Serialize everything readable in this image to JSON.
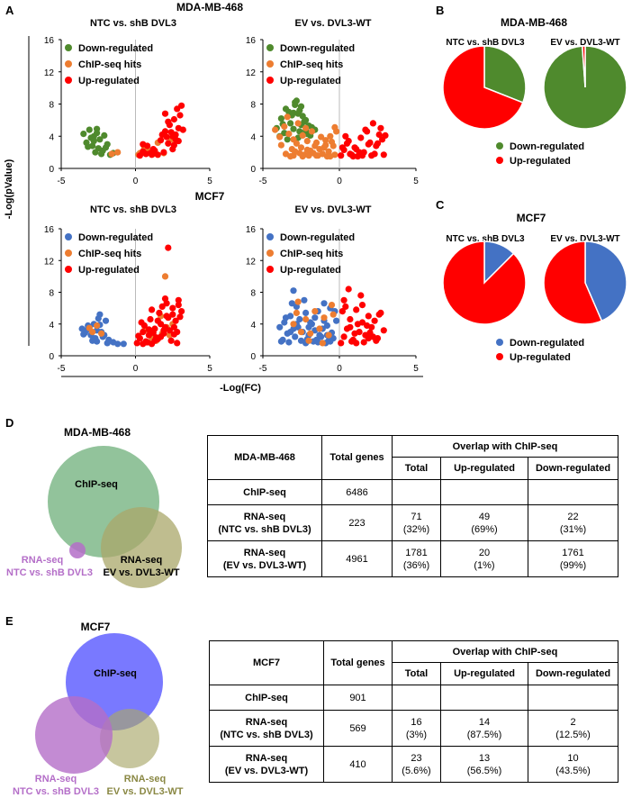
{
  "panel_letters": [
    "A",
    "B",
    "C",
    "D",
    "E"
  ],
  "panel_a": {
    "y_axis_label": "-Log(pValue)",
    "x_axis_label": "-Log(FC)",
    "x_ticks": [
      "-5",
      "0",
      "5"
    ],
    "y_ticks": [
      "0",
      "4",
      "8",
      "12",
      "16"
    ]
  },
  "legend_labels": {
    "down": "Down-regulated",
    "chip": "ChIP-seq hits",
    "up": "Up-regulated"
  },
  "colors": {
    "down_mda": "#4f8a2d",
    "down_mcf7": "#4472c4",
    "chip": "#ed7d31",
    "up": "#ff0000",
    "venn_chip_mda": "#7fb98a",
    "venn_chip_mcf7": "#6a6aff",
    "venn_ntc": "#b46ec8",
    "venn_ev": "#a9a76a"
  },
  "chart_data": [
    {
      "type": "scatter",
      "cell_line": "MDA-MB-468",
      "title": "NTC vs. shB DVL3",
      "xlim": [
        -5,
        5
      ],
      "ylim": [
        0,
        16
      ],
      "series": [
        {
          "name": "Down-regulated",
          "x": [
            -3.5,
            -3.3,
            -3.1,
            -2.9,
            -2.8,
            -2.6,
            -2.5,
            -2.4,
            -2.2,
            -2.1,
            -1.9,
            -2.7,
            -3.0,
            -2.3,
            -2.0,
            -1.7,
            -1.5,
            -2.8,
            -3.2,
            -2.6
          ],
          "y": [
            4.3,
            3.2,
            4.8,
            2.8,
            4.0,
            4.9,
            2.5,
            3.6,
            2.2,
            4.1,
            3.0,
            2.0,
            3.8,
            1.8,
            2.6,
            1.7,
            1.9,
            3.4,
            2.7,
            4.4
          ]
        },
        {
          "name": "ChIP-seq hits",
          "x": [
            -1.6,
            -1.2,
            0.3,
            0.6,
            0.9,
            1.2,
            1.5,
            1.9,
            2.4,
            0.2
          ],
          "y": [
            1.8,
            2.0,
            1.9,
            2.5,
            2.2,
            1.8,
            3.2,
            1.9,
            3.6,
            1.7
          ]
        },
        {
          "name": "Up-regulated",
          "x": [
            0.3,
            0.5,
            0.8,
            1.0,
            1.2,
            1.5,
            1.7,
            1.9,
            2.0,
            2.2,
            2.3,
            2.5,
            2.6,
            2.7,
            2.8,
            2.9,
            3.0,
            3.1,
            0.7,
            1.3,
            2.1,
            2.4,
            2.6,
            2.9,
            1.8,
            2.2,
            2.7,
            3.2,
            0.5,
            1.1,
            2.0,
            2.5
          ],
          "y": [
            1.6,
            2.1,
            2.8,
            1.9,
            2.4,
            1.7,
            3.5,
            2.0,
            4.6,
            3.1,
            5.4,
            2.4,
            6.1,
            4.2,
            7.4,
            5.0,
            6.6,
            7.8,
            1.8,
            2.2,
            3.9,
            4.5,
            2.9,
            3.4,
            4.2,
            5.8,
            3.6,
            4.8,
            3.0,
            1.7,
            6.8,
            4.0
          ]
        }
      ]
    },
    {
      "type": "scatter",
      "cell_line": "MDA-MB-468",
      "title": "EV vs. DVL3-WT",
      "xlim": [
        -5,
        5
      ],
      "ylim": [
        0,
        16
      ],
      "series": [
        {
          "name": "Down-regulated",
          "x": [
            -4.1,
            -3.8,
            -3.5,
            -3.2,
            -2.9,
            -2.7,
            -2.5,
            -2.2,
            -2.0,
            -1.8,
            -3.6,
            -3.0,
            -2.6,
            -2.3,
            -3.9,
            -3.3,
            -2.8,
            -2.4,
            -2.1,
            -1.6,
            -3.4,
            -2.9,
            -2.5,
            -3.1,
            -2.7,
            -2.2,
            -3.7,
            -3.0,
            -2.6,
            -1.9
          ],
          "y": [
            5.0,
            6.2,
            7.4,
            5.6,
            8.2,
            6.8,
            7.7,
            6.0,
            5.3,
            5.1,
            4.4,
            4.9,
            4.6,
            5.8,
            4.0,
            7.0,
            8.4,
            6.5,
            4.3,
            4.8,
            3.6,
            7.9,
            5.4,
            6.6,
            3.8,
            4.7,
            5.5,
            6.9,
            7.2,
            4.1
          ]
        },
        {
          "name": "ChIP-seq hits",
          "x": [
            -4.2,
            -3.9,
            -3.6,
            -3.3,
            -3.0,
            -2.7,
            -2.4,
            -2.1,
            -1.8,
            -1.5,
            -1.2,
            -0.9,
            -0.6,
            -0.4,
            -0.2,
            -3.8,
            -3.4,
            -3.1,
            -2.8,
            -2.5,
            -2.2,
            -1.9,
            -1.6,
            -1.3,
            -1.0,
            -0.7,
            -0.5,
            -3.5,
            -3.0,
            -2.6,
            -2.3,
            -2.0,
            -1.7,
            -1.4,
            -1.1,
            -0.8,
            -0.3,
            -3.2,
            -2.9,
            -2.4,
            -2.1,
            -1.5,
            -0.9,
            -0.6,
            -0.3
          ],
          "y": [
            4.8,
            3.9,
            5.2,
            4.3,
            3.6,
            5.6,
            4.1,
            3.4,
            4.6,
            3.2,
            3.9,
            3.5,
            4.0,
            2.8,
            4.6,
            2.9,
            6.4,
            2.4,
            3.1,
            2.6,
            5.0,
            2.2,
            2.8,
            2.4,
            2.6,
            2.1,
            3.3,
            1.8,
            1.6,
            1.9,
            1.7,
            1.6,
            1.9,
            1.6,
            1.8,
            1.5,
            1.7,
            1.5,
            2.1,
            1.5,
            2.3,
            1.6,
            2.9,
            1.5,
            5.1
          ]
        },
        {
          "name": "Up-regulated",
          "x": [
            0.1,
            0.3,
            0.5,
            0.7,
            1.0,
            1.2,
            1.4,
            1.6,
            1.8,
            2.0,
            2.2,
            2.4,
            2.6,
            2.8,
            3.0,
            0.4,
            0.8,
            1.1,
            1.5,
            1.9,
            2.3,
            2.7,
            0.2,
            0.6,
            0.9,
            1.3,
            1.7,
            2.1,
            2.5,
            2.9
          ],
          "y": [
            1.6,
            2.3,
            3.1,
            1.8,
            2.6,
            1.5,
            3.8,
            2.0,
            4.6,
            3.2,
            5.6,
            2.8,
            4.2,
            3.6,
            4.1,
            4.0,
            1.7,
            2.4,
            1.6,
            3.0,
            1.8,
            5.0,
            2.6,
            3.4,
            1.5,
            2.0,
            4.8,
            1.6,
            3.1,
            1.7
          ]
        }
      ]
    },
    {
      "type": "scatter",
      "cell_line": "MCF7",
      "title": "NTC vs. shB DVL3",
      "xlim": [
        -5,
        5
      ],
      "ylim": [
        0,
        16
      ],
      "series": [
        {
          "name": "Down-regulated",
          "x": [
            -3.6,
            -3.4,
            -3.2,
            -3.0,
            -2.8,
            -2.6,
            -2.4,
            -2.2,
            -2.0,
            -1.8,
            -3.5,
            -3.1,
            -2.7,
            -2.5,
            -2.3,
            -2.9,
            -1.9,
            -1.5,
            -1.2,
            -3.3,
            -2.6,
            -2.1,
            -0.8,
            -2.4
          ],
          "y": [
            3.4,
            2.9,
            3.8,
            2.6,
            4.0,
            3.2,
            5.2,
            2.4,
            4.4,
            2.0,
            2.7,
            3.6,
            2.2,
            4.7,
            3.0,
            1.9,
            1.6,
            1.7,
            1.5,
            3.2,
            1.8,
            2.6,
            1.5,
            3.9
          ]
        },
        {
          "name": "ChIP-seq hits",
          "x": [
            -3.1,
            -2.9,
            -2.6,
            -2.3,
            0.6,
            1.1,
            1.7,
            2.1,
            2.5,
            1.4,
            2.3,
            0.9,
            2.0,
            1.8
          ],
          "y": [
            3.5,
            3.0,
            3.8,
            2.8,
            3.2,
            2.4,
            5.0,
            3.6,
            4.0,
            1.9,
            2.6,
            1.7,
            10.0,
            2.8
          ]
        },
        {
          "name": "Up-regulated",
          "x": [
            0.1,
            0.3,
            0.5,
            0.7,
            0.9,
            1.1,
            1.3,
            1.5,
            1.7,
            1.9,
            2.1,
            2.3,
            2.5,
            2.7,
            2.9,
            3.1,
            0.4,
            0.8,
            1.2,
            1.6,
            2.0,
            2.4,
            2.8,
            0.2,
            0.6,
            1.0,
            1.4,
            1.8,
            2.2,
            2.6,
            3.0,
            0.5,
            0.9,
            1.3,
            1.7,
            2.1,
            2.5,
            2.9,
            1.5,
            2.0,
            2.2,
            1.9,
            2.6,
            2.8,
            1.1,
            0.7
          ],
          "y": [
            1.6,
            2.2,
            3.0,
            1.8,
            2.6,
            1.5,
            3.4,
            2.1,
            4.0,
            2.8,
            5.0,
            3.2,
            6.0,
            4.4,
            7.0,
            5.6,
            4.2,
            1.7,
            2.9,
            5.4,
            3.6,
            1.9,
            3.0,
            2.5,
            3.8,
            4.6,
            2.3,
            6.2,
            4.8,
            2.7,
            4.9,
            1.5,
            3.3,
            1.9,
            2.4,
            6.6,
            5.2,
            6.4,
            4.4,
            7.2,
            13.6,
            3.2,
            3.6,
            1.6,
            5.8,
            1.7
          ]
        }
      ]
    },
    {
      "type": "scatter",
      "cell_line": "MCF7",
      "title": "EV vs. DVL3-WT",
      "xlim": [
        -5,
        5
      ],
      "ylim": [
        0,
        16
      ],
      "series": [
        {
          "name": "Down-regulated",
          "x": [
            -3.9,
            -3.6,
            -3.4,
            -3.2,
            -3.0,
            -2.8,
            -2.6,
            -2.4,
            -2.2,
            -2.0,
            -1.8,
            -1.6,
            -1.4,
            -1.2,
            -1.0,
            -0.8,
            -0.6,
            -0.4,
            -3.7,
            -3.3,
            -2.9,
            -2.5,
            -2.1,
            -1.7,
            -1.3,
            -0.9,
            -0.5,
            -3.5,
            -3.1,
            -2.7,
            -2.3,
            -1.9,
            -1.5,
            -1.1,
            -0.7,
            -0.3,
            -3.8,
            -3.0,
            -2.2,
            -1.4,
            -0.6,
            -2.8,
            -1.0,
            -0.2,
            -3.2,
            -2.0,
            -1.6,
            -0.8
          ],
          "y": [
            3.6,
            4.2,
            2.8,
            5.0,
            3.4,
            6.2,
            4.6,
            3.0,
            5.4,
            2.6,
            4.0,
            3.2,
            5.6,
            2.4,
            4.4,
            3.8,
            6.0,
            2.2,
            2.0,
            1.7,
            2.4,
            1.9,
            2.1,
            1.8,
            2.6,
            1.6,
            2.9,
            4.8,
            6.6,
            3.6,
            7.0,
            4.2,
            2.0,
            3.4,
            1.9,
            5.6,
            1.8,
            8.2,
            1.6,
            1.7,
            1.8,
            4.0,
            6.6,
            4.4,
            3.0,
            3.6,
            4.8,
            2.6
          ]
        },
        {
          "name": "ChIP-seq hits",
          "x": [
            -3.0,
            -2.8,
            -2.5,
            -2.2,
            -1.9,
            -1.6,
            -1.3,
            -1.0,
            -0.7,
            -0.4,
            -2.7,
            -2.0,
            -1.1,
            -0.5
          ],
          "y": [
            4.0,
            5.4,
            3.0,
            4.6,
            2.8,
            5.6,
            3.4,
            4.8,
            2.6,
            5.2,
            6.8,
            1.9,
            1.6,
            6.4
          ]
        },
        {
          "name": "Up-regulated",
          "x": [
            0.1,
            0.3,
            0.5,
            0.7,
            0.9,
            1.1,
            1.3,
            1.5,
            1.7,
            1.9,
            2.1,
            2.3,
            2.5,
            2.7,
            2.9,
            0.2,
            0.6,
            1.0,
            1.4,
            1.8,
            2.2,
            2.6,
            0.4,
            0.8,
            1.2,
            1.6,
            2.0,
            2.4,
            0.3,
            0.7,
            1.1,
            1.5,
            1.9
          ],
          "y": [
            1.6,
            2.4,
            3.4,
            4.6,
            2.0,
            5.8,
            3.0,
            4.2,
            2.6,
            5.0,
            3.6,
            4.4,
            2.2,
            5.4,
            3.2,
            5.6,
            8.4,
            2.8,
            7.6,
            3.8,
            2.4,
            5.2,
            6.2,
            1.8,
            4.0,
            1.7,
            2.9,
            1.9,
            7.0,
            3.6,
            1.6,
            6.4,
            2.2
          ]
        }
      ]
    },
    {
      "type": "pie",
      "cell_line": "MDA-MB-468",
      "title": "NTC vs. shB DVL3",
      "categories": [
        "Down-regulated",
        "Up-regulated"
      ],
      "values": [
        22,
        49
      ]
    },
    {
      "type": "pie",
      "cell_line": "MDA-MB-468",
      "title": "EV vs. DVL3-WT",
      "categories": [
        "Down-regulated",
        "Up-regulated"
      ],
      "values": [
        1761,
        20
      ]
    },
    {
      "type": "pie",
      "cell_line": "MCF7",
      "title": "NTC vs. shB DVL3",
      "categories": [
        "Down-regulated",
        "Up-regulated"
      ],
      "values": [
        2,
        14
      ]
    },
    {
      "type": "pie",
      "cell_line": "MCF7",
      "title": "EV vs. DVL3-WT",
      "categories": [
        "Down-regulated",
        "Up-regulated"
      ],
      "values": [
        10,
        13
      ]
    }
  ],
  "panel_b": {
    "cell_line": "MDA-MB-468",
    "left_title": "NTC vs. shB DVL3",
    "right_title": "EV vs. DVL3-WT"
  },
  "panel_c": {
    "cell_line": "MCF7",
    "left_title": "NTC vs. shB DVL3",
    "right_title": "EV vs. DVL3-WT"
  },
  "panel_d": {
    "title": "MDA-MB-468",
    "venn": {
      "chip": "ChIP-seq",
      "ntc_line1": "RNA-seq",
      "ntc_line2": "NTC vs. shB DVL3",
      "ev_line1": "RNA-seq",
      "ev_line2": "EV vs. DVL3-WT"
    },
    "table": {
      "col_cell": "MDA-MB-468",
      "col_total": "Total genes",
      "col_overlap": "Overlap with ChIP-seq",
      "sub_total": "Total",
      "sub_up": "Up-regulated",
      "sub_down": "Down-regulated",
      "rows": [
        {
          "label1": "ChIP-seq",
          "label2": "",
          "total_genes": "6486",
          "total": "",
          "total_pct": "",
          "up": "",
          "up_pct": "",
          "down": "",
          "down_pct": ""
        },
        {
          "label1": "RNA-seq",
          "label2": "(NTC vs. shB DVL3)",
          "total_genes": "223",
          "total": "71",
          "total_pct": "(32%)",
          "up": "49",
          "up_pct": "(69%)",
          "down": "22",
          "down_pct": "(31%)"
        },
        {
          "label1": "RNA-seq",
          "label2": "(EV vs. DVL3-WT)",
          "total_genes": "4961",
          "total": "1781",
          "total_pct": "(36%)",
          "up": "20",
          "up_pct": "(1%)",
          "down": "1761",
          "down_pct": "(99%)"
        }
      ]
    }
  },
  "panel_e": {
    "title": "MCF7",
    "venn": {
      "chip": "ChIP-seq",
      "ntc_line1": "RNA-seq",
      "ntc_line2": "NTC vs. shB DVL3",
      "ev_line1": "RNA-seq",
      "ev_line2": "EV vs. DVL3-WT"
    },
    "table": {
      "col_cell": "MCF7",
      "col_total": "Total genes",
      "col_overlap": "Overlap with ChIP-seq",
      "sub_total": "Total",
      "sub_up": "Up-regulated",
      "sub_down": "Down-regulated",
      "rows": [
        {
          "label1": "ChIP-seq",
          "label2": "",
          "total_genes": "901",
          "total": "",
          "total_pct": "",
          "up": "",
          "up_pct": "",
          "down": "",
          "down_pct": ""
        },
        {
          "label1": "RNA-seq",
          "label2": "(NTC vs. shB DVL3)",
          "total_genes": "569",
          "total": "16",
          "total_pct": "(3%)",
          "up": "14",
          "up_pct": "(87.5%)",
          "down": "2",
          "down_pct": "(12.5%)"
        },
        {
          "label1": "RNA-seq",
          "label2": "(EV vs. DVL3-WT)",
          "total_genes": "410",
          "total": "23",
          "total_pct": "(5.6%)",
          "up": "13",
          "up_pct": "(56.5%)",
          "down": "10",
          "down_pct": "(43.5%)"
        }
      ]
    }
  }
}
